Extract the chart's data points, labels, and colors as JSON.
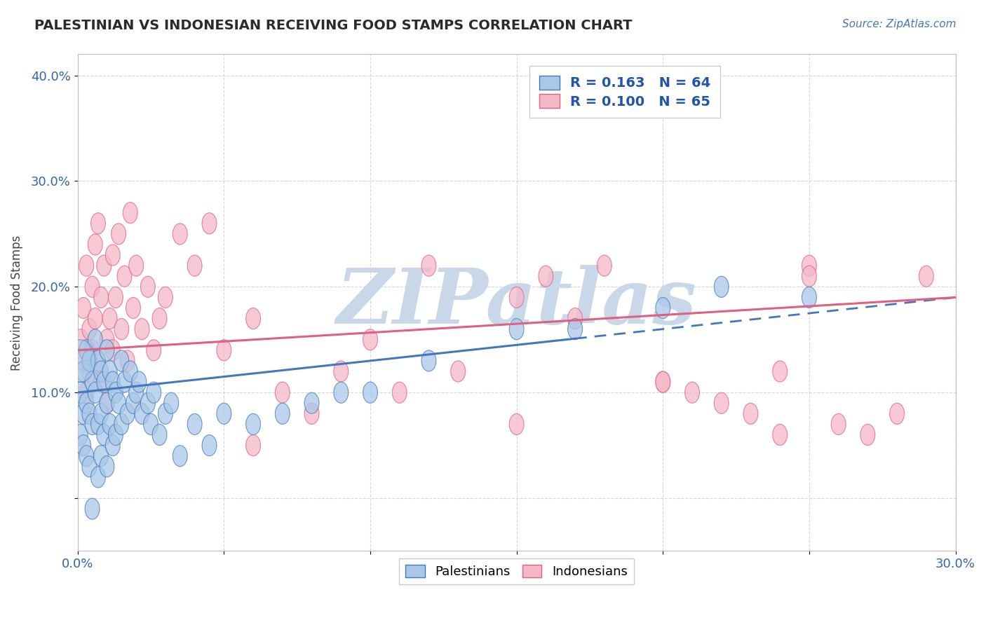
{
  "title": "PALESTINIAN VS INDONESIAN RECEIVING FOOD STAMPS CORRELATION CHART",
  "source": "Source: ZipAtlas.com",
  "ylabel": "Receiving Food Stamps",
  "xlim": [
    0.0,
    0.3
  ],
  "ylim": [
    -0.05,
    0.42
  ],
  "x_ticks": [
    0.0,
    0.05,
    0.1,
    0.15,
    0.2,
    0.25,
    0.3
  ],
  "x_tick_labels": [
    "0.0%",
    "",
    "",
    "",
    "",
    "",
    "30.0%"
  ],
  "y_ticks": [
    0.0,
    0.1,
    0.2,
    0.3,
    0.4
  ],
  "y_tick_labels": [
    "",
    "10.0%",
    "20.0%",
    "30.0%",
    "40.0%"
  ],
  "palestinians_R": 0.163,
  "palestinians_N": 64,
  "indonesians_R": 0.1,
  "indonesians_N": 65,
  "color_palestinian": "#A8C8E8",
  "color_indonesian": "#F4B8C8",
  "color_line_palestinian": "#4477BB",
  "color_line_indonesian": "#E06080",
  "background_color": "#FFFFFF",
  "watermark_color": "#C8D8E8",
  "palestinians_x": [
    0.001,
    0.001,
    0.002,
    0.002,
    0.002,
    0.003,
    0.003,
    0.003,
    0.004,
    0.004,
    0.004,
    0.005,
    0.005,
    0.005,
    0.006,
    0.006,
    0.007,
    0.007,
    0.007,
    0.008,
    0.008,
    0.008,
    0.009,
    0.009,
    0.01,
    0.01,
    0.01,
    0.011,
    0.011,
    0.012,
    0.012,
    0.013,
    0.013,
    0.014,
    0.015,
    0.015,
    0.016,
    0.017,
    0.018,
    0.019,
    0.02,
    0.021,
    0.022,
    0.024,
    0.025,
    0.026,
    0.028,
    0.03,
    0.032,
    0.035,
    0.04,
    0.045,
    0.05,
    0.06,
    0.07,
    0.08,
    0.09,
    0.1,
    0.12,
    0.15,
    0.17,
    0.2,
    0.22,
    0.25
  ],
  "palestinians_y": [
    0.1,
    0.06,
    0.12,
    0.08,
    0.05,
    0.14,
    0.09,
    0.04,
    0.13,
    0.08,
    0.03,
    0.11,
    0.07,
    -0.01,
    0.15,
    0.1,
    0.13,
    0.07,
    0.02,
    0.12,
    0.08,
    0.04,
    0.11,
    0.06,
    0.14,
    0.09,
    0.03,
    0.12,
    0.07,
    0.11,
    0.05,
    0.1,
    0.06,
    0.09,
    0.13,
    0.07,
    0.11,
    0.08,
    0.12,
    0.09,
    0.1,
    0.11,
    0.08,
    0.09,
    0.07,
    0.1,
    0.06,
    0.08,
    0.09,
    0.04,
    0.07,
    0.05,
    0.08,
    0.07,
    0.08,
    0.09,
    0.1,
    0.1,
    0.13,
    0.16,
    0.16,
    0.18,
    0.2,
    0.19
  ],
  "indonesians_x": [
    0.001,
    0.002,
    0.002,
    0.003,
    0.003,
    0.004,
    0.004,
    0.005,
    0.005,
    0.006,
    0.006,
    0.007,
    0.007,
    0.008,
    0.008,
    0.009,
    0.01,
    0.01,
    0.011,
    0.012,
    0.012,
    0.013,
    0.014,
    0.015,
    0.016,
    0.017,
    0.018,
    0.019,
    0.02,
    0.022,
    0.024,
    0.026,
    0.028,
    0.03,
    0.035,
    0.04,
    0.045,
    0.05,
    0.06,
    0.07,
    0.08,
    0.09,
    0.1,
    0.11,
    0.12,
    0.13,
    0.15,
    0.16,
    0.17,
    0.18,
    0.2,
    0.21,
    0.22,
    0.23,
    0.24,
    0.25,
    0.26,
    0.27,
    0.28,
    0.29,
    0.06,
    0.15,
    0.2,
    0.24,
    0.25
  ],
  "indonesians_y": [
    0.15,
    0.13,
    0.18,
    0.1,
    0.22,
    0.16,
    0.12,
    0.2,
    0.14,
    0.24,
    0.17,
    0.13,
    0.26,
    0.19,
    0.11,
    0.22,
    0.15,
    0.09,
    0.17,
    0.23,
    0.14,
    0.19,
    0.25,
    0.16,
    0.21,
    0.13,
    0.27,
    0.18,
    0.22,
    0.16,
    0.2,
    0.14,
    0.17,
    0.19,
    0.25,
    0.22,
    0.26,
    0.14,
    0.17,
    0.1,
    0.08,
    0.12,
    0.15,
    0.1,
    0.22,
    0.12,
    0.19,
    0.21,
    0.17,
    0.22,
    0.11,
    0.1,
    0.09,
    0.08,
    0.06,
    0.22,
    0.07,
    0.06,
    0.08,
    0.21,
    0.05,
    0.07,
    0.11,
    0.12,
    0.21
  ],
  "line_p_x0": 0.0,
  "line_p_y0": 0.1,
  "line_p_x1": 0.3,
  "line_p_y1": 0.19,
  "line_i_x0": 0.0,
  "line_i_y0": 0.14,
  "line_i_x1": 0.3,
  "line_i_y1": 0.19,
  "line_p_solid_end": 0.17,
  "line_p_dashed_start": 0.17
}
